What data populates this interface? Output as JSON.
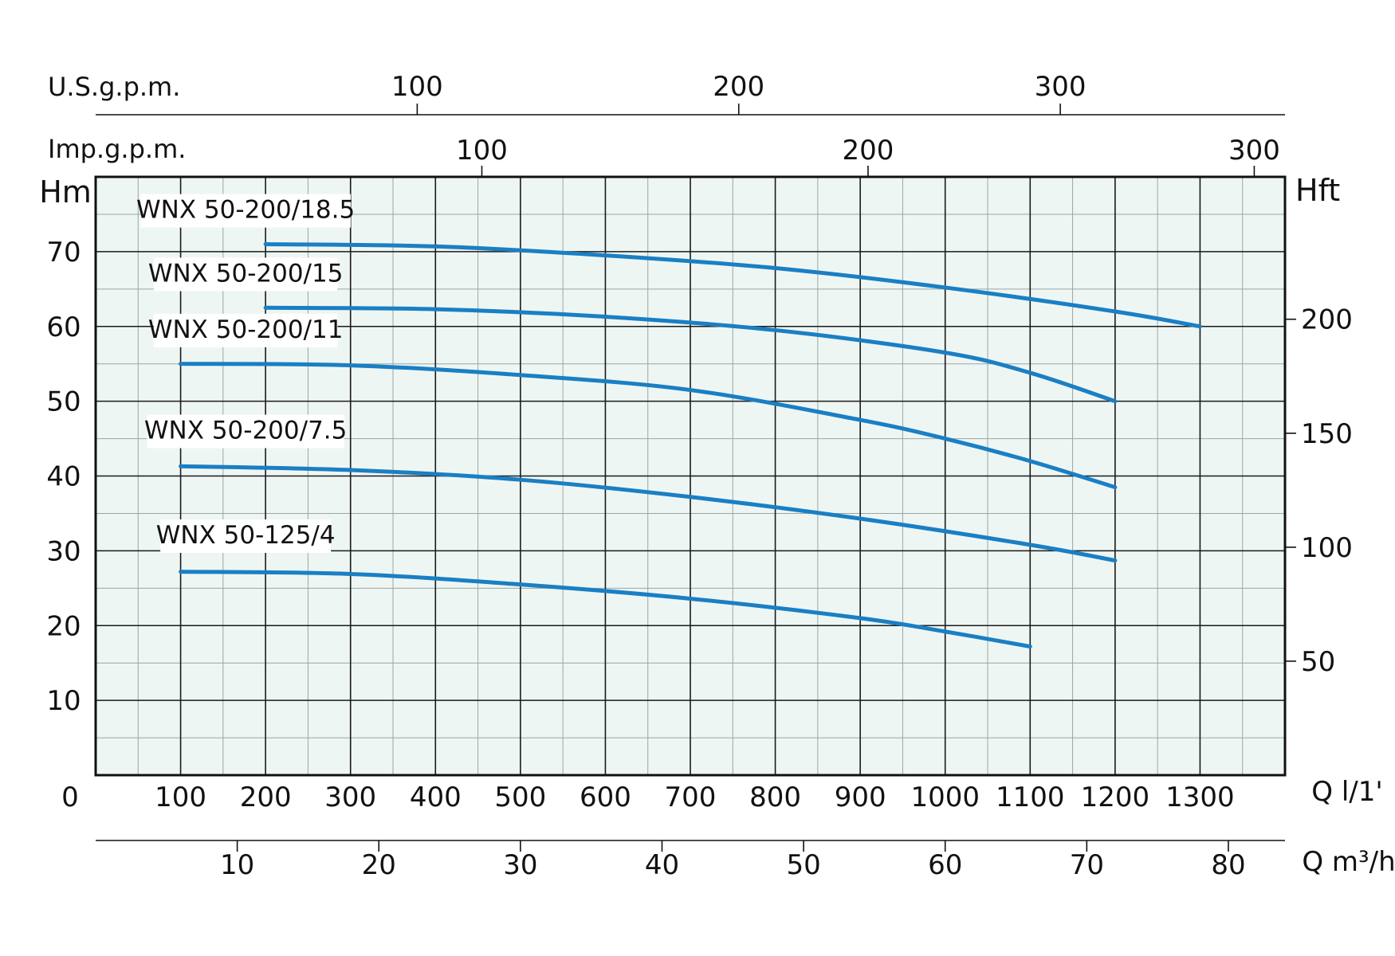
{
  "chart_data": {
    "type": "line",
    "x_unit_label": "Q l/1'",
    "y_unit_label": "Hm",
    "y2_unit_label": "Hft",
    "xlim": [
      0,
      1400
    ],
    "ylim": [
      0,
      80
    ],
    "grid": true,
    "x_ticks": [
      0,
      100,
      200,
      300,
      400,
      500,
      600,
      700,
      800,
      900,
      1000,
      1100,
      1200,
      1300
    ],
    "y_ticks": [
      10,
      20,
      30,
      40,
      50,
      60,
      70
    ],
    "y2_ticks": [
      50,
      100,
      150,
      200
    ],
    "y2_factor": 3.2808,
    "m3h": {
      "label": "Q m³/h",
      "factor": 16.6667,
      "ticks": [
        10,
        20,
        30,
        40,
        50,
        60,
        70,
        80
      ]
    },
    "usgpm": {
      "label": "U.S.g.p.m.",
      "factor": 3.785,
      "ticks": [
        100,
        200,
        300
      ]
    },
    "impgpm": {
      "label": "Imp.g.p.m.",
      "factor": 4.546,
      "ticks": [
        100,
        200,
        300
      ]
    },
    "series": [
      {
        "name": "WNX 50-200/18.5",
        "label_x": 200,
        "label_y": 74.5,
        "x": [
          200,
          400,
          600,
          800,
          1000,
          1200,
          1300
        ],
        "y": [
          71,
          70.7,
          69.5,
          67.8,
          65.2,
          62,
          60
        ]
      },
      {
        "name": "WNX 50-200/15",
        "label_x": 200,
        "label_y": 66,
        "x": [
          200,
          400,
          600,
          800,
          1000,
          1100,
          1200
        ],
        "y": [
          62.5,
          62.3,
          61.3,
          59.5,
          56.5,
          53.8,
          50
        ]
      },
      {
        "name": "WNX 50-200/11",
        "label_x": 200,
        "label_y": 58.5,
        "x": [
          100,
          300,
          500,
          700,
          900,
          1000,
          1100,
          1200
        ],
        "y": [
          55,
          54.8,
          53.5,
          51.5,
          47.5,
          45,
          42,
          38.5
        ]
      },
      {
        "name": "WNX 50-200/7.5",
        "label_x": 200,
        "label_y": 45,
        "x": [
          100,
          300,
          500,
          700,
          900,
          1100,
          1200
        ],
        "y": [
          41.3,
          40.8,
          39.5,
          37.2,
          34.3,
          30.8,
          28.7
        ]
      },
      {
        "name": "WNX 50-125/4",
        "label_x": 200,
        "label_y": 31,
        "x": [
          100,
          300,
          500,
          700,
          900,
          1000,
          1100
        ],
        "y": [
          27.2,
          26.9,
          25.5,
          23.6,
          21,
          19.2,
          17.2
        ]
      }
    ]
  }
}
